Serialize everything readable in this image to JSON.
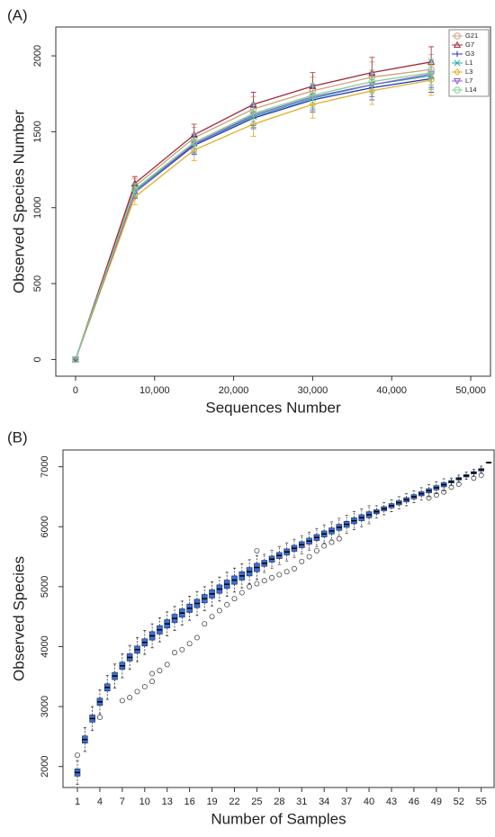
{
  "chart_data": [
    {
      "type": "line",
      "panel_label": "(A)",
      "x_label": "Sequences Number",
      "y_label": "Observed Species Number",
      "x": [
        0,
        7500,
        15000,
        22500,
        30000,
        37500,
        45000
      ],
      "xlim": [
        -2500,
        52500
      ],
      "ylim": [
        -110,
        2190
      ],
      "xticks": [
        0,
        {
          "value": 10000,
          "label": "10,000"
        },
        {
          "value": 20000,
          "label": "20,000"
        },
        {
          "value": 30000,
          "label": "30,000"
        },
        {
          "value": 40000,
          "label": "40,000"
        },
        {
          "value": 50000,
          "label": "50,000"
        }
      ],
      "yticks": [
        0,
        500,
        1000,
        1500,
        2000
      ],
      "legend": "top-right",
      "series": [
        {
          "name": "G21",
          "color": "#c9a27c",
          "marker": "circle",
          "values": [
            0,
            1140,
            1460,
            1650,
            1770,
            1860,
            1910
          ],
          "errors": [
            0,
            50,
            70,
            80,
            90,
            100,
            100
          ]
        },
        {
          "name": "G7",
          "color": "#a3283e",
          "marker": "triangle",
          "values": [
            0,
            1160,
            1480,
            1680,
            1800,
            1890,
            1960
          ],
          "errors": [
            0,
            45,
            70,
            80,
            90,
            100,
            100
          ]
        },
        {
          "name": "G3",
          "color": "#2030c0",
          "marker": "plus",
          "values": [
            0,
            1100,
            1410,
            1590,
            1710,
            1790,
            1850
          ],
          "errors": [
            0,
            40,
            60,
            70,
            80,
            80,
            90
          ]
        },
        {
          "name": "L1",
          "color": "#2aa9a0",
          "marker": "cross",
          "values": [
            0,
            1110,
            1420,
            1600,
            1720,
            1810,
            1870
          ],
          "errors": [
            0,
            40,
            60,
            70,
            80,
            80,
            90
          ]
        },
        {
          "name": "L3",
          "color": "#e0b020",
          "marker": "diamond",
          "values": [
            0,
            1070,
            1380,
            1550,
            1680,
            1770,
            1840
          ],
          "errors": [
            0,
            50,
            70,
            80,
            90,
            90,
            100
          ]
        },
        {
          "name": "L7",
          "color": "#8a5cd0",
          "marker": "down-triangle",
          "values": [
            0,
            1100,
            1420,
            1610,
            1730,
            1810,
            1880
          ],
          "errors": [
            0,
            40,
            60,
            70,
            80,
            80,
            90
          ]
        },
        {
          "name": "L14",
          "color": "#7fd092",
          "marker": "circle",
          "values": [
            0,
            1120,
            1430,
            1620,
            1740,
            1830,
            1890
          ],
          "errors": [
            0,
            40,
            60,
            70,
            80,
            80,
            90
          ]
        }
      ]
    },
    {
      "type": "boxplot",
      "panel_label": "(B)",
      "x_label": "Number of Samples",
      "y_label": "Observed Species",
      "color": "#3a6fd8",
      "categories": [
        "1",
        null,
        null,
        "4",
        null,
        null,
        "7",
        null,
        null,
        "10",
        null,
        null,
        "13",
        null,
        null,
        "16",
        null,
        null,
        "19",
        null,
        null,
        "22",
        null,
        null,
        "25",
        null,
        null,
        "28",
        null,
        null,
        "31",
        null,
        null,
        "34",
        null,
        null,
        "37",
        null,
        null,
        "40",
        null,
        null,
        "43",
        null,
        null,
        "46",
        null,
        null,
        "49",
        null,
        null,
        "52",
        null,
        null,
        "55",
        null
      ],
      "ylim": [
        1650,
        7280
      ],
      "yticks": [
        2000,
        3000,
        4000,
        5000,
        6000,
        7000
      ],
      "median": [
        1900,
        2450,
        2800,
        3080,
        3320,
        3510,
        3680,
        3820,
        3950,
        4070,
        4180,
        4280,
        4380,
        4470,
        4560,
        4640,
        4720,
        4800,
        4880,
        4960,
        5040,
        5110,
        5180,
        5250,
        5320,
        5390,
        5460,
        5520,
        5580,
        5640,
        5700,
        5760,
        5820,
        5880,
        5930,
        5990,
        6040,
        6100,
        6150,
        6200,
        6250,
        6300,
        6350,
        6400,
        6450,
        6500,
        6550,
        6600,
        6650,
        6700,
        6750,
        6800,
        6850,
        6900,
        6950,
        7070
      ],
      "q1": [
        1840,
        2390,
        2740,
        3020,
        3260,
        3450,
        3620,
        3760,
        3890,
        4010,
        4110,
        4210,
        4310,
        4400,
        4490,
        4570,
        4650,
        4730,
        4810,
        4890,
        4970,
        5040,
        5110,
        5180,
        5250,
        5340,
        5410,
        5470,
        5530,
        5590,
        5650,
        5710,
        5770,
        5830,
        5880,
        5940,
        5990,
        6050,
        6100,
        6150,
        6215,
        6265,
        6315,
        6365,
        6415,
        6465,
        6515,
        6565,
        6615,
        6665,
        6730,
        6780,
        6830,
        6880,
        6930,
        7065
      ],
      "q3": [
        1960,
        2510,
        2860,
        3140,
        3380,
        3570,
        3740,
        3880,
        4010,
        4130,
        4250,
        4350,
        4450,
        4540,
        4630,
        4710,
        4790,
        4870,
        4950,
        5030,
        5110,
        5180,
        5250,
        5320,
        5390,
        5440,
        5510,
        5570,
        5630,
        5690,
        5750,
        5810,
        5870,
        5930,
        5980,
        6040,
        6090,
        6150,
        6200,
        6250,
        6285,
        6335,
        6385,
        6435,
        6485,
        6535,
        6585,
        6635,
        6685,
        6735,
        6770,
        6820,
        6870,
        6920,
        6970,
        7075
      ],
      "low": [
        1700,
        2250,
        2600,
        2880,
        3120,
        3310,
        3480,
        3620,
        3750,
        3870,
        3980,
        4080,
        4180,
        4270,
        4360,
        4440,
        4520,
        4600,
        4680,
        4760,
        4840,
        4910,
        4980,
        5050,
        5120,
        5240,
        5310,
        5370,
        5430,
        5490,
        5550,
        5610,
        5670,
        5730,
        5780,
        5840,
        5890,
        5950,
        6000,
        6050,
        6150,
        6200,
        6250,
        6300,
        6350,
        6400,
        6450,
        6500,
        6550,
        6600,
        6690,
        6740,
        6790,
        6840,
        6890,
        7060
      ],
      "high": [
        2100,
        2650,
        3000,
        3280,
        3520,
        3710,
        3880,
        4020,
        4150,
        4270,
        4380,
        4480,
        4580,
        4670,
        4760,
        4840,
        4920,
        5000,
        5080,
        5160,
        5240,
        5310,
        5380,
        5450,
        5520,
        5540,
        5610,
        5670,
        5730,
        5790,
        5850,
        5910,
        5970,
        6030,
        6080,
        6140,
        6190,
        6250,
        6300,
        6350,
        6350,
        6400,
        6450,
        6500,
        6550,
        6600,
        6650,
        6700,
        6750,
        6800,
        6810,
        6860,
        6910,
        6960,
        7010,
        7080
      ],
      "outliers": [
        [
          2190
        ],
        [],
        [],
        [
          2820
        ],
        [],
        [],
        [
          3100
        ],
        [
          3150
        ],
        [
          3250
        ],
        [
          3330
        ],
        [
          3420,
          3550
        ],
        [
          3600
        ],
        [
          3700
        ],
        [
          3900
        ],
        [
          3950
        ],
        [
          4050
        ],
        [
          4150
        ],
        [
          4380
        ],
        [
          4500
        ],
        [
          4600
        ],
        [
          4700
        ],
        [
          4800
        ],
        [
          4900
        ],
        [
          5000
        ],
        [
          5600,
          5050
        ],
        [
          5100
        ],
        [
          5150
        ],
        [
          5200
        ],
        [
          5250
        ],
        [
          5300
        ],
        [
          5420
        ],
        [
          5500
        ],
        [
          5600
        ],
        [
          5680
        ],
        [
          5740
        ],
        [
          5800
        ],
        [],
        [],
        [],
        [],
        [],
        [],
        [],
        [],
        [],
        [],
        [],
        [
          6480
        ],
        [
          6530
        ],
        [
          6580
        ],
        [
          6660
        ],
        [
          6710
        ],
        [],
        [
          6810
        ],
        [
          6860
        ],
        []
      ]
    }
  ]
}
